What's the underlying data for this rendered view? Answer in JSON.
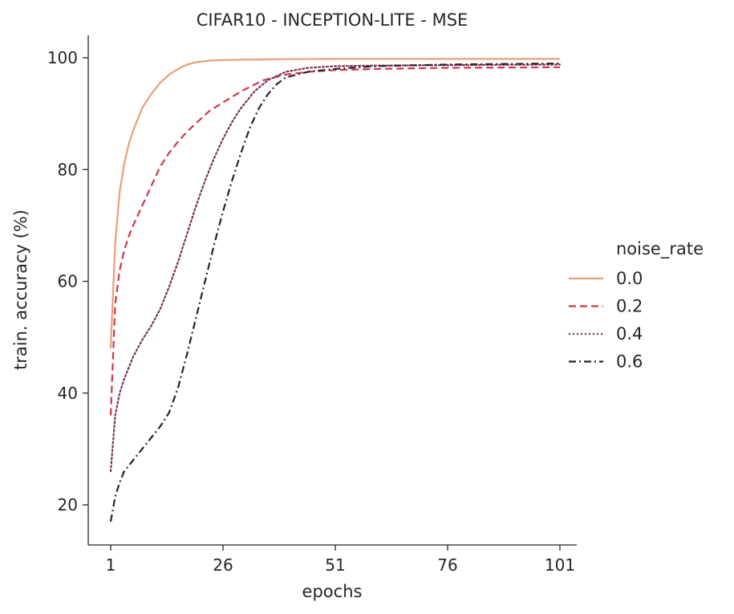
{
  "chart_data": {
    "type": "line",
    "title": "CIFAR10 - INCEPTION-LITE - MSE",
    "xlabel": "epochs",
    "ylabel": "train. accuracy (%)",
    "xlim": [
      1,
      101
    ],
    "ylim": [
      13,
      104
    ],
    "xticks": [
      1,
      26,
      51,
      76,
      101
    ],
    "yticks": [
      20,
      40,
      60,
      80,
      100
    ],
    "grid": false,
    "legend": {
      "title": "noise_rate",
      "placement": "right"
    },
    "series": [
      {
        "name": "0.0",
        "color": "#e8a077",
        "dash": "solid",
        "x": [
          1,
          2,
          3,
          4,
          5,
          6,
          7,
          8,
          10,
          12,
          14,
          16,
          18,
          20,
          23,
          26,
          30,
          35,
          40,
          51,
          76,
          101
        ],
        "y": [
          48,
          67,
          76,
          81,
          84.5,
          87,
          89,
          91,
          93.5,
          95.5,
          97,
          98,
          98.8,
          99.2,
          99.5,
          99.6,
          99.65,
          99.7,
          99.75,
          99.8,
          99.8,
          99.8
        ]
      },
      {
        "name": "0.2",
        "color": "#d1364c",
        "dash": "dashed",
        "x": [
          1,
          2,
          3,
          4,
          5,
          6,
          8,
          10,
          12,
          14,
          16,
          18,
          20,
          23,
          26,
          30,
          35,
          40,
          45,
          51,
          60,
          76,
          101
        ],
        "y": [
          36,
          56,
          62,
          65.5,
          68,
          70,
          73.5,
          77,
          80.5,
          83,
          85,
          86.8,
          88.3,
          90.5,
          92,
          94,
          96,
          97,
          97.5,
          97.8,
          98,
          98.2,
          98.3
        ]
      },
      {
        "name": "0.4",
        "color": "#7a3356",
        "dash": "dotted",
        "x": [
          1,
          2,
          3,
          4,
          5,
          6,
          7,
          8,
          10,
          12,
          14,
          16,
          18,
          20,
          22,
          24,
          26,
          28,
          30,
          33,
          36,
          40,
          45,
          51,
          60,
          76,
          101
        ],
        "y": [
          26,
          36,
          40,
          42.5,
          44.5,
          46.5,
          48,
          49.5,
          52,
          55,
          59,
          63.5,
          68.5,
          73.5,
          78,
          82,
          85.5,
          88.5,
          91,
          94,
          96,
          97.5,
          98.2,
          98.5,
          98.6,
          98.7,
          98.8
        ]
      },
      {
        "name": "0.6",
        "color": "#2e1e2e",
        "dash": "dashdot",
        "x": [
          1,
          2,
          3,
          4,
          5,
          6,
          7,
          8,
          10,
          12,
          14,
          16,
          18,
          20,
          22,
          24,
          26,
          28,
          30,
          32,
          34,
          36,
          38,
          40,
          45,
          51,
          60,
          76,
          101
        ],
        "y": [
          17,
          21.5,
          24,
          26,
          27,
          28,
          29,
          30,
          32,
          34,
          36.5,
          41,
          47,
          53.5,
          60,
          66.5,
          72.5,
          78,
          83,
          87.5,
          91,
          93.5,
          95.3,
          96.5,
          97.5,
          98,
          98.5,
          98.8,
          99
        ]
      }
    ]
  }
}
